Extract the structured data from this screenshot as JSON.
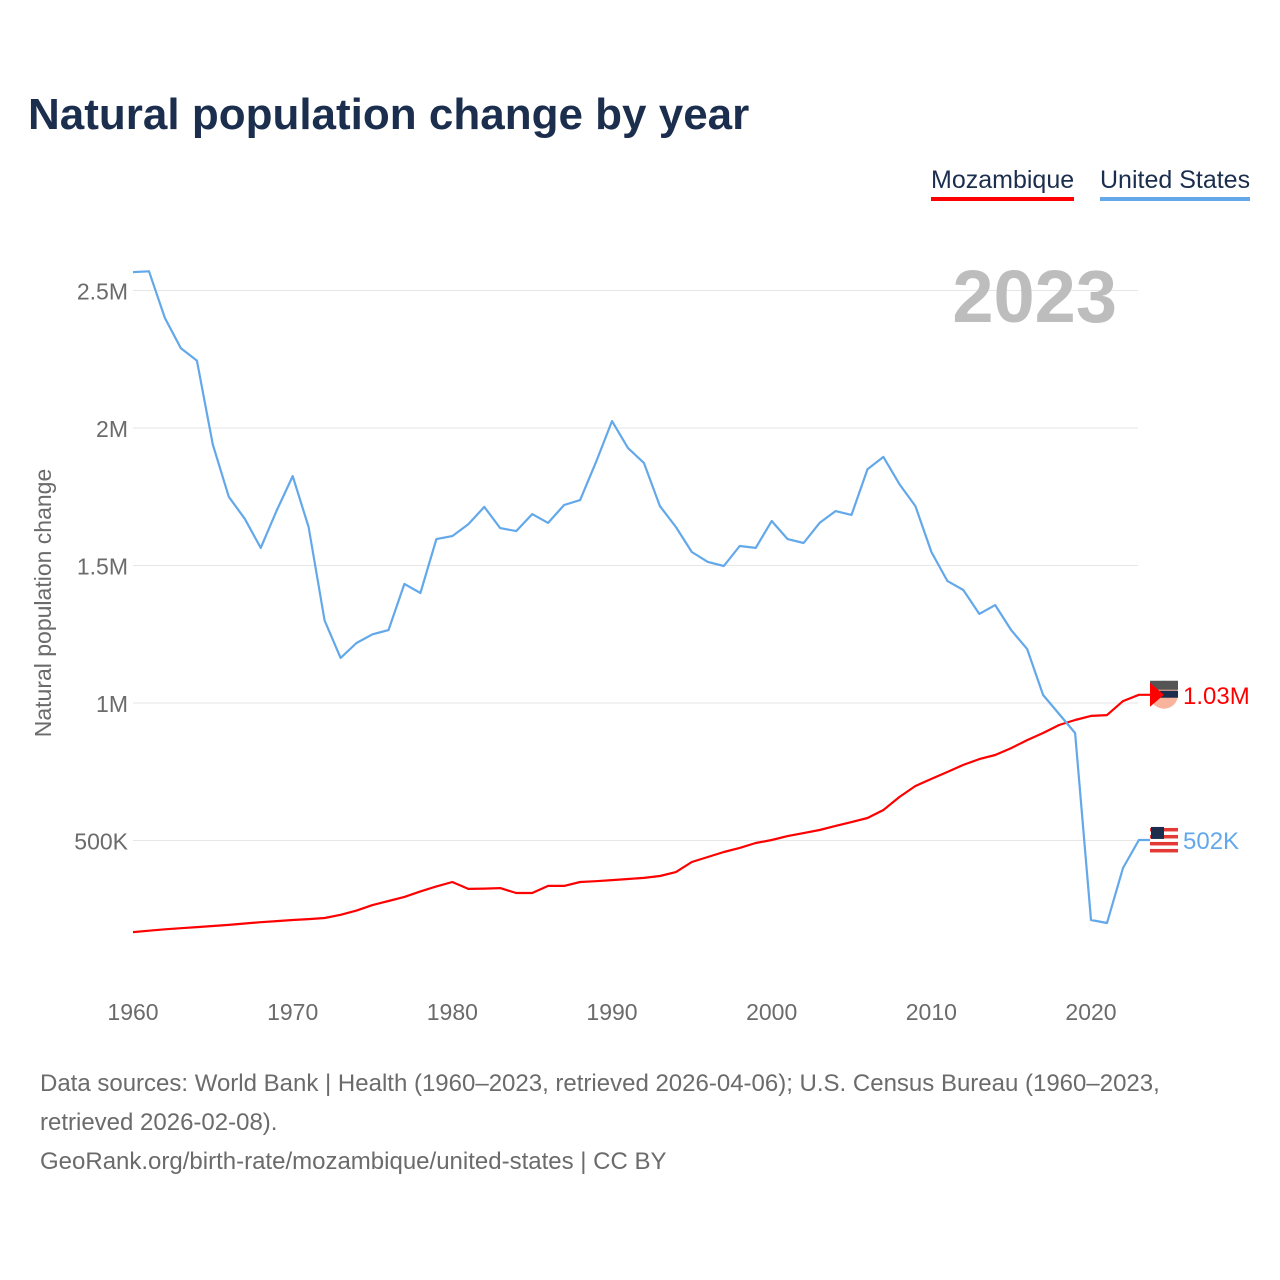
{
  "title": "Natural population change by year",
  "legend": [
    {
      "name": "Mozambique",
      "color": "#ff0000"
    },
    {
      "name": "United States",
      "color": "#62a8ea"
    }
  ],
  "year_label": "2023",
  "chart_data": {
    "type": "line",
    "title": "Natural population change by year",
    "xlabel": "",
    "ylabel": "Natural population change",
    "xlim": [
      1960,
      2023
    ],
    "ylim": [
      0,
      2600000
    ],
    "grid": true,
    "legend_position": "top-right",
    "x_ticks": [
      1960,
      1970,
      1980,
      1990,
      2000,
      2010,
      2020
    ],
    "x_tick_labels": [
      "1960",
      "1970",
      "1980",
      "1990",
      "2000",
      "2010",
      "2020"
    ],
    "y_ticks": [
      500000,
      1000000,
      1500000,
      2000000,
      2500000
    ],
    "y_tick_labels": [
      "500K",
      "1M",
      "1.5M",
      "2M",
      "2.5M"
    ],
    "x": [
      1960,
      1961,
      1962,
      1963,
      1964,
      1965,
      1966,
      1967,
      1968,
      1969,
      1970,
      1971,
      1972,
      1973,
      1974,
      1975,
      1976,
      1977,
      1978,
      1979,
      1980,
      1981,
      1982,
      1983,
      1984,
      1985,
      1986,
      1987,
      1988,
      1989,
      1990,
      1991,
      1992,
      1993,
      1994,
      1995,
      1996,
      1997,
      1998,
      1999,
      2000,
      2001,
      2002,
      2003,
      2004,
      2005,
      2006,
      2007,
      2008,
      2009,
      2010,
      2011,
      2012,
      2013,
      2014,
      2015,
      2016,
      2017,
      2018,
      2019,
      2020,
      2021,
      2022,
      2023
    ],
    "series": [
      {
        "name": "Mozambique",
        "color": "#ff0000",
        "end_label": "1.03M",
        "values": [
          167000,
          172000,
          177000,
          181000,
          185000,
          189000,
          193000,
          198000,
          203000,
          207000,
          211000,
          214000,
          218000,
          230000,
          245000,
          265000,
          280000,
          295000,
          315000,
          333000,
          349000,
          324000,
          325000,
          327000,
          309000,
          309000,
          335000,
          335000,
          349000,
          352000,
          356000,
          360000,
          364000,
          371000,
          385000,
          422000,
          440000,
          458000,
          473000,
          491000,
          502000,
          516000,
          527000,
          538000,
          553000,
          567000,
          582000,
          611000,
          658000,
          698000,
          724000,
          749000,
          775000,
          796000,
          811000,
          836000,
          865000,
          891000,
          920000,
          938000,
          953000,
          956000,
          1007000,
          1030000
        ]
      },
      {
        "name": "United States",
        "color": "#62a8ea",
        "end_label": "502K",
        "values": [
          2567000,
          2570000,
          2400000,
          2290000,
          2245000,
          1940000,
          1750000,
          1670000,
          1564000,
          1700000,
          1825000,
          1640000,
          1300000,
          1164000,
          1218000,
          1250000,
          1265000,
          1433000,
          1400000,
          1596000,
          1607000,
          1650000,
          1713000,
          1636000,
          1625000,
          1687000,
          1655000,
          1720000,
          1738000,
          1876000,
          2025000,
          1927000,
          1873000,
          1716000,
          1640000,
          1549000,
          1513000,
          1498000,
          1571000,
          1564000,
          1662000,
          1596000,
          1582000,
          1655000,
          1698000,
          1684000,
          1850000,
          1895000,
          1796000,
          1716000,
          1549000,
          1444000,
          1411000,
          1324000,
          1356000,
          1265000,
          1196000,
          1029000,
          960000,
          891000,
          211000,
          200000,
          400000,
          502000
        ]
      }
    ]
  },
  "footer": {
    "sources": "Data sources: World Bank | Health (1960–2023, retrieved 2026-04-06); U.S. Census Bureau (1960–2023,",
    "sources_cont": "retrieved 2026-02-08).",
    "credit": "GeoRank.org/birth-rate/mozambique/united-states | CC BY"
  }
}
